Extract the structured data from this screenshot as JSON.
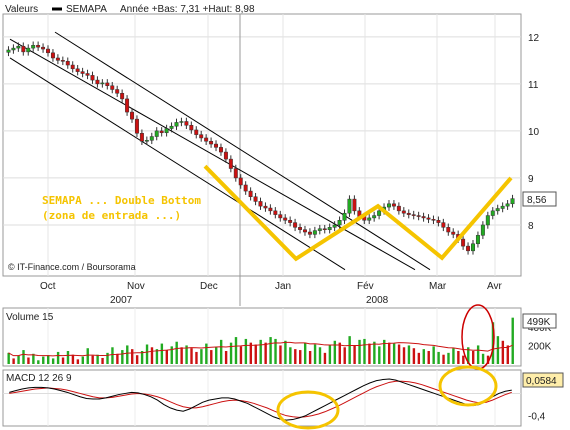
{
  "legend": {
    "label": "Valeurs",
    "series_name": "SEMAPA",
    "range_text": "Année +Bas: 7,31 +Haut: 8,98"
  },
  "source": "© IT-Finance.com / Boursorama",
  "annotation": {
    "line1": "SEMAPA ... Double Bottom",
    "line2": "(zona de entrada ...)"
  },
  "colors": {
    "up_candle": "#22aa22",
    "down_candle": "#cc1111",
    "trend_channel": "#000000",
    "highlight": "#f5c400",
    "macd_line": "#000000",
    "signal_line": "#cc1111",
    "circle_mark": "#cc0000"
  },
  "chart_data": [
    {
      "type": "candlestick",
      "title": "SEMAPA",
      "x_ticks": [
        "Oct",
        "Nov",
        "Dec",
        "Jan",
        "Fév",
        "Mar",
        "Avr"
      ],
      "year_labels": [
        "2007",
        "2008"
      ],
      "y_ticks": [
        "8",
        "9",
        "10",
        "11",
        "12"
      ],
      "ylim": [
        7.0,
        12.4
      ],
      "last_value": "8,56",
      "grid": true,
      "close": [
        11.72,
        11.76,
        11.8,
        11.68,
        11.76,
        11.82,
        11.78,
        11.74,
        11.66,
        11.55,
        11.5,
        11.48,
        11.4,
        11.32,
        11.26,
        11.22,
        11.18,
        11.08,
        11.0,
        11.02,
        10.96,
        10.88,
        10.8,
        10.68,
        10.4,
        10.25,
        9.95,
        9.78,
        9.8,
        9.88,
        10.0,
        9.96,
        10.05,
        10.1,
        10.18,
        10.2,
        10.12,
        10.02,
        9.92,
        9.85,
        9.78,
        9.72,
        9.65,
        9.55,
        9.4,
        9.2,
        9.0,
        8.85,
        8.72,
        8.6,
        8.5,
        8.4,
        8.36,
        8.3,
        8.22,
        8.15,
        8.1,
        8.05,
        7.95,
        7.9,
        7.85,
        7.8,
        7.88,
        7.92,
        7.9,
        7.95,
        8.0,
        8.1,
        8.25,
        8.55,
        8.3,
        8.18,
        8.1,
        8.15,
        8.2,
        8.3,
        8.38,
        8.45,
        8.4,
        8.3,
        8.25,
        8.22,
        8.2,
        8.18,
        8.15,
        8.12,
        8.1,
        8.05,
        7.95,
        7.85,
        7.8,
        7.7,
        7.55,
        7.45,
        7.6,
        7.78,
        8.0,
        8.2,
        8.3,
        8.35,
        8.4,
        8.45,
        8.56
      ],
      "volume_ticks": [
        "200K",
        "400K"
      ],
      "volume_label": "Volume 15",
      "volume_last": "499K",
      "volume_ylim": [
        0,
        560
      ],
      "volume": [
        120,
        60,
        90,
        150,
        70,
        110,
        40,
        80,
        95,
        60,
        130,
        70,
        140,
        100,
        50,
        80,
        170,
        90,
        100,
        65,
        120,
        180,
        110,
        150,
        200,
        160,
        95,
        140,
        210,
        180,
        160,
        220,
        150,
        190,
        240,
        180,
        200,
        170,
        130,
        160,
        220,
        150,
        180,
        260,
        140,
        230,
        290,
        190,
        270,
        230,
        210,
        260,
        230,
        290,
        270,
        200,
        250,
        180,
        160,
        150,
        230,
        140,
        210,
        180,
        120,
        200,
        250,
        230,
        180,
        300,
        200,
        260,
        270,
        220,
        240,
        190,
        260,
        230,
        220,
        210,
        180,
        200,
        170,
        120,
        160,
        140,
        190,
        130,
        100,
        120,
        170,
        140,
        90,
        180,
        140,
        200,
        110,
        90,
        450,
        300,
        250,
        200,
        499
      ],
      "macd_label": "MACD 12 26 9",
      "macd_last": "0,0584",
      "macd_ticks": [
        "-0,4"
      ],
      "macd_ylim": [
        -0.55,
        0.35
      ],
      "macd": [
        0.02,
        0.05,
        0.08,
        0.1,
        0.11,
        0.11,
        0.1,
        0.08,
        0.05,
        0.02,
        -0.02,
        -0.06,
        -0.09,
        -0.1,
        -0.1,
        -0.08,
        -0.05,
        -0.02,
        0.0,
        0.02,
        0.01,
        -0.02,
        -0.06,
        -0.12,
        -0.2,
        -0.26,
        -0.3,
        -0.32,
        -0.28,
        -0.22,
        -0.16,
        -0.12,
        -0.1,
        -0.08,
        -0.08,
        -0.1,
        -0.14,
        -0.18,
        -0.24,
        -0.3,
        -0.36,
        -0.42,
        -0.46,
        -0.48,
        -0.47,
        -0.44,
        -0.4,
        -0.34,
        -0.28,
        -0.22,
        -0.16,
        -0.1,
        -0.04,
        0.02,
        0.08,
        0.14,
        0.19,
        0.23,
        0.25,
        0.26,
        0.24,
        0.2,
        0.16,
        0.12,
        0.08,
        0.04,
        0.0,
        -0.04,
        -0.08,
        -0.12,
        -0.16,
        -0.2,
        -0.22,
        -0.2,
        -0.14,
        -0.06,
        0.0,
        0.04,
        0.06
      ],
      "signal": [
        0.0,
        0.02,
        0.04,
        0.06,
        0.08,
        0.09,
        0.1,
        0.09,
        0.08,
        0.06,
        0.03,
        0.0,
        -0.03,
        -0.06,
        -0.08,
        -0.08,
        -0.07,
        -0.05,
        -0.03,
        -0.01,
        0.0,
        -0.01,
        -0.03,
        -0.06,
        -0.1,
        -0.15,
        -0.2,
        -0.24,
        -0.26,
        -0.26,
        -0.24,
        -0.21,
        -0.18,
        -0.15,
        -0.13,
        -0.12,
        -0.13,
        -0.15,
        -0.18,
        -0.22,
        -0.26,
        -0.31,
        -0.36,
        -0.4,
        -0.42,
        -0.43,
        -0.42,
        -0.4,
        -0.37,
        -0.33,
        -0.28,
        -0.23,
        -0.17,
        -0.11,
        -0.05,
        0.01,
        0.07,
        0.12,
        0.16,
        0.2,
        0.22,
        0.22,
        0.21,
        0.19,
        0.16,
        0.12,
        0.08,
        0.04,
        0.0,
        -0.04,
        -0.08,
        -0.12,
        -0.15,
        -0.17,
        -0.16,
        -0.12,
        -0.07,
        -0.02,
        0.02
      ]
    }
  ]
}
